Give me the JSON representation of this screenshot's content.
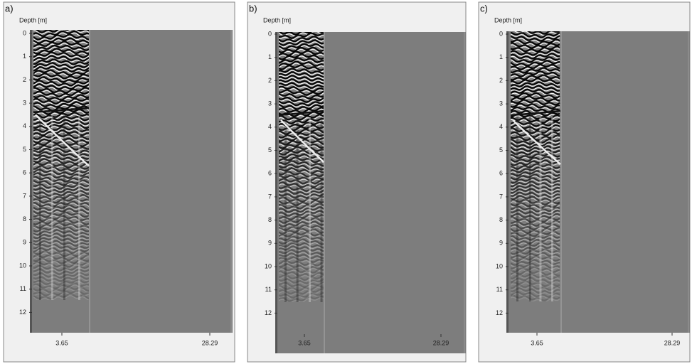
{
  "panels": [
    {
      "label": "a)",
      "axis_label": "Depth [m]",
      "depth_ticks": [
        0,
        1,
        2,
        3,
        4,
        5,
        6,
        7,
        8,
        9,
        10,
        11,
        12
      ],
      "distance_ticks": [
        3.65,
        28.29
      ]
    },
    {
      "label": "b)",
      "axis_label": "Depth [m]",
      "depth_ticks": [
        0,
        1,
        2,
        3,
        4,
        5,
        6,
        7,
        8,
        9,
        10,
        11,
        12
      ],
      "distance_ticks": [
        3.65,
        28.29
      ]
    },
    {
      "label": "c)",
      "axis_label": "Depth [m]",
      "depth_ticks": [
        0,
        1,
        2,
        3,
        4,
        5,
        6,
        7,
        8,
        9,
        10,
        11,
        12
      ],
      "distance_ticks": [
        3.65,
        28.29
      ]
    }
  ]
}
